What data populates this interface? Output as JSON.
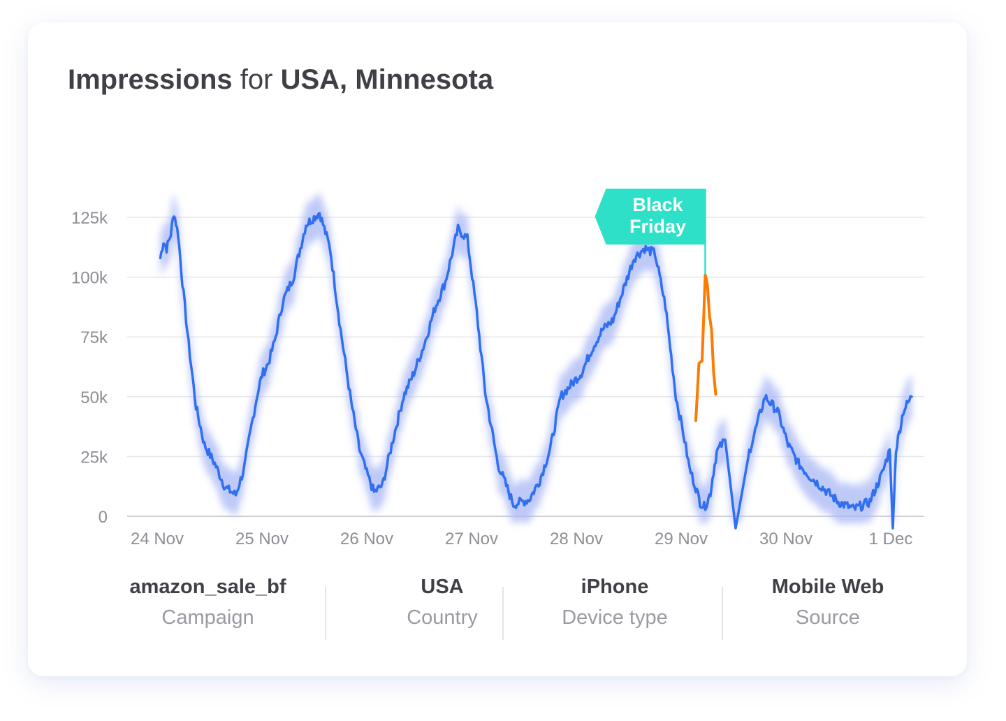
{
  "title": {
    "metric": "Impressions",
    "connector": "for",
    "location": "USA, Minnesota"
  },
  "colors": {
    "line": "#2f6ff0",
    "band": "#a9b7f5",
    "highlight": "#ff7a00",
    "annotation_bg": "#2ee0c8",
    "grid": "#e7e7ea",
    "axis": "#cfcfd4"
  },
  "chart_data": {
    "type": "line",
    "title": "Impressions for USA, Minnesota",
    "xlabel": "",
    "ylabel": "",
    "ylim": [
      0,
      125000
    ],
    "grid": true,
    "legend": "none",
    "y_ticks": [
      "0",
      "25k",
      "50k",
      "75k",
      "100k",
      "125k"
    ],
    "y_tick_values": [
      0,
      25000,
      50000,
      75000,
      100000,
      125000
    ],
    "x_ticks": [
      "24 Nov",
      "25 Nov",
      "26 Nov",
      "27 Nov",
      "28 Nov",
      "29 Nov",
      "30 Nov",
      "1 Dec"
    ],
    "x_unit": "days since 24 Nov 00:00",
    "series": [
      {
        "role": "impressions",
        "x": [
          0.03,
          0.06,
          0.09,
          0.13,
          0.16,
          0.2,
          0.24,
          0.3,
          0.37,
          0.45,
          0.55,
          0.65,
          0.75,
          0.83,
          0.9,
          0.96,
          1.0,
          1.06,
          1.12,
          1.2,
          1.3,
          1.42,
          1.55,
          1.65,
          1.75,
          1.85,
          1.93,
          2.0,
          2.07,
          2.15,
          2.25,
          2.35,
          2.45,
          2.55,
          2.65,
          2.75,
          2.87,
          2.96,
          3.05,
          3.13,
          3.25,
          3.4,
          3.55,
          3.65,
          3.75,
          3.85,
          3.95,
          4.05,
          4.15,
          4.25,
          4.35,
          4.45,
          4.55,
          4.65,
          4.75,
          4.85,
          4.95,
          5.02,
          5.08,
          5.14,
          5.18,
          5.22,
          5.25,
          5.28,
          5.31,
          5.34,
          5.42,
          5.52,
          5.65,
          5.8,
          5.92,
          6.02,
          6.12,
          6.22,
          6.35,
          6.5,
          6.65,
          6.8,
          6.92,
          6.99,
          7.02,
          7.05,
          7.09,
          7.12,
          7.2
        ],
        "y": [
          108000,
          115000,
          112000,
          118000,
          127000,
          118000,
          98000,
          72000,
          46000,
          30000,
          22000,
          12000,
          9000,
          20000,
          38000,
          52000,
          59000,
          64000,
          73000,
          90000,
          100000,
          122000,
          127000,
          112000,
          78000,
          48000,
          28000,
          18000,
          10000,
          13000,
          32000,
          50000,
          60000,
          72000,
          87000,
          98000,
          120000,
          116000,
          85000,
          52000,
          22000,
          5000,
          7000,
          15000,
          28000,
          50000,
          55000,
          60000,
          70000,
          78000,
          82000,
          95000,
          108000,
          112000,
          110000,
          88000,
          50000,
          35000,
          20000,
          12000,
          6000,
          4000,
          6000,
          10000,
          19000,
          27000,
          32000,
          -5000,
          27000,
          50000,
          44000,
          30000,
          22000,
          17000,
          12000,
          6000,
          3000,
          6000,
          18000,
          28000,
          -5000,
          28000,
          37000,
          44000,
          50000
        ]
      },
      {
        "role": "black_friday_highlight",
        "x": [
          5.14,
          5.17,
          5.2,
          5.23,
          5.25,
          5.27,
          5.29,
          5.31,
          5.33
        ],
        "y": [
          40000,
          64000,
          65000,
          101000,
          97000,
          84000,
          78000,
          60000,
          51000
        ]
      }
    ],
    "annotation": {
      "lines": [
        "Black",
        "Friday"
      ],
      "x": 5.23,
      "y": 101000
    }
  },
  "filters": [
    {
      "value": "amazon_sale_bf",
      "label": "Campaign"
    },
    {
      "value": "USA",
      "label": "Country"
    },
    {
      "value": "iPhone",
      "label": "Device type"
    },
    {
      "value": "Mobile Web",
      "label": "Source"
    }
  ]
}
